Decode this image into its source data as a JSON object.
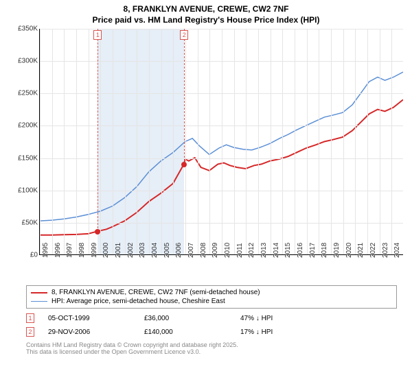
{
  "title": "8, FRANKLYN AVENUE, CREWE, CW2 7NF",
  "subtitle": "Price paid vs. HM Land Registry's House Price Index (HPI)",
  "chart": {
    "type": "line",
    "ylim": [
      0,
      350000
    ],
    "ytick_step": 50000,
    "yticks": [
      "£0",
      "£50K",
      "£100K",
      "£150K",
      "£200K",
      "£250K",
      "£300K",
      "£350K"
    ],
    "x_years": [
      1995,
      1996,
      1997,
      1998,
      1999,
      2000,
      2001,
      2002,
      2003,
      2004,
      2005,
      2006,
      2007,
      2008,
      2009,
      2010,
      2011,
      2012,
      2013,
      2014,
      2015,
      2016,
      2017,
      2018,
      2019,
      2020,
      2021,
      2022,
      2023,
      2024
    ],
    "x_span": [
      1995,
      2025
    ],
    "background_color": "#ffffff",
    "grid_color": "#e5e5e5",
    "band": {
      "start": 1999.78,
      "end": 2006.9,
      "color": "#e6eef7"
    },
    "series": [
      {
        "name": "property",
        "label": "8, FRANKLYN AVENUE, CREWE, CW2 7NF (semi-detached house)",
        "color": "#d62728",
        "width": 2,
        "points": [
          [
            1995,
            30000
          ],
          [
            1996,
            30000
          ],
          [
            1997,
            30500
          ],
          [
            1998,
            31000
          ],
          [
            1999,
            32000
          ],
          [
            1999.78,
            36000
          ],
          [
            2000.5,
            39000
          ],
          [
            2001,
            43000
          ],
          [
            2002,
            52000
          ],
          [
            2003,
            65000
          ],
          [
            2004,
            82000
          ],
          [
            2005,
            95000
          ],
          [
            2006,
            110000
          ],
          [
            2006.9,
            140000
          ],
          [
            2007,
            148000
          ],
          [
            2007.3,
            145000
          ],
          [
            2007.8,
            150000
          ],
          [
            2008.3,
            135000
          ],
          [
            2009,
            130000
          ],
          [
            2009.7,
            140000
          ],
          [
            2010.2,
            142000
          ],
          [
            2010.7,
            138000
          ],
          [
            2011.3,
            135000
          ],
          [
            2012,
            133000
          ],
          [
            2012.7,
            138000
          ],
          [
            2013.3,
            140000
          ],
          [
            2014,
            145000
          ],
          [
            2014.8,
            148000
          ],
          [
            2015.5,
            152000
          ],
          [
            2016.2,
            158000
          ],
          [
            2017,
            165000
          ],
          [
            2017.8,
            170000
          ],
          [
            2018.5,
            175000
          ],
          [
            2019.2,
            178000
          ],
          [
            2020,
            182000
          ],
          [
            2020.8,
            192000
          ],
          [
            2021.5,
            205000
          ],
          [
            2022.2,
            218000
          ],
          [
            2022.9,
            225000
          ],
          [
            2023.5,
            222000
          ],
          [
            2024.2,
            228000
          ],
          [
            2025,
            240000
          ]
        ]
      },
      {
        "name": "hpi",
        "label": "HPI: Average price, semi-detached house, Cheshire East",
        "color": "#5b8fd6",
        "width": 1.5,
        "points": [
          [
            1995,
            52000
          ],
          [
            1996,
            53000
          ],
          [
            1997,
            55000
          ],
          [
            1998,
            58000
          ],
          [
            1999,
            62000
          ],
          [
            2000,
            67000
          ],
          [
            2001,
            75000
          ],
          [
            2002,
            88000
          ],
          [
            2003,
            105000
          ],
          [
            2004,
            128000
          ],
          [
            2005,
            145000
          ],
          [
            2006,
            158000
          ],
          [
            2007,
            175000
          ],
          [
            2007.6,
            180000
          ],
          [
            2008.2,
            168000
          ],
          [
            2009,
            155000
          ],
          [
            2009.8,
            165000
          ],
          [
            2010.4,
            170000
          ],
          [
            2011,
            166000
          ],
          [
            2011.8,
            163000
          ],
          [
            2012.5,
            162000
          ],
          [
            2013.2,
            166000
          ],
          [
            2014,
            172000
          ],
          [
            2014.8,
            180000
          ],
          [
            2015.5,
            186000
          ],
          [
            2016.2,
            193000
          ],
          [
            2017,
            200000
          ],
          [
            2017.8,
            207000
          ],
          [
            2018.5,
            213000
          ],
          [
            2019.2,
            216000
          ],
          [
            2020,
            220000
          ],
          [
            2020.8,
            232000
          ],
          [
            2021.5,
            250000
          ],
          [
            2022.2,
            268000
          ],
          [
            2022.9,
            275000
          ],
          [
            2023.5,
            270000
          ],
          [
            2024.2,
            275000
          ],
          [
            2025,
            283000
          ]
        ]
      }
    ],
    "markers": [
      {
        "id": "1",
        "x": 1999.78,
        "y": 36000
      },
      {
        "id": "2",
        "x": 2006.9,
        "y": 140000
      }
    ]
  },
  "legend": {
    "items": [
      {
        "color": "#d62728",
        "width": 2,
        "label": "8, FRANKLYN AVENUE, CREWE, CW2 7NF (semi-detached house)"
      },
      {
        "color": "#5b8fd6",
        "width": 1.5,
        "label": "HPI: Average price, semi-detached house, Cheshire East"
      }
    ]
  },
  "transactions": [
    {
      "id": "1",
      "date": "05-OCT-1999",
      "price": "£36,000",
      "hpi_delta": "47% ↓ HPI"
    },
    {
      "id": "2",
      "date": "29-NOV-2006",
      "price": "£140,000",
      "hpi_delta": "17% ↓ HPI"
    }
  ],
  "footer": {
    "line1": "Contains HM Land Registry data © Crown copyright and database right 2025.",
    "line2": "This data is licensed under the Open Government Licence v3.0."
  }
}
